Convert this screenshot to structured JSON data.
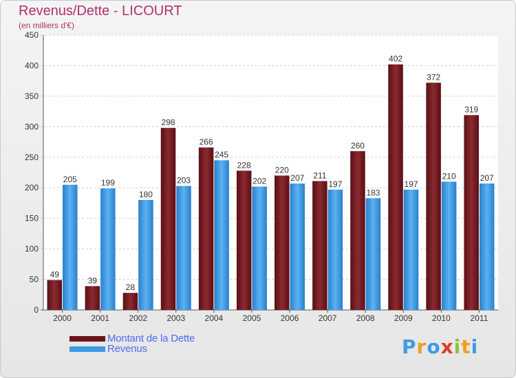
{
  "header": {
    "title": "Revenus/Dette - LICOURT",
    "subtitle": "(en milliers d'€)"
  },
  "colors": {
    "dette": "#7a1c24",
    "revenus": "#3e9ae6",
    "title": "#b0306a",
    "legend_text": "#4a6cf0"
  },
  "legend": {
    "dette_label": "Montant de la Dette",
    "revenus_label": "Revenus"
  },
  "logo": {
    "letters": [
      "P",
      "r",
      "o",
      "x",
      "i",
      "t",
      "i"
    ],
    "letter_colors": [
      "#3e9ae6",
      "#f0a020",
      "#3e9ae6",
      "#e03a2a",
      "#8cc43c",
      "#f0a020",
      "#3e9ae6"
    ]
  },
  "chart_data": {
    "type": "bar",
    "title": "Revenus/Dette - LICOURT",
    "subtitle": "(en milliers d'€)",
    "categories": [
      "2000",
      "2001",
      "2002",
      "2003",
      "2004",
      "2005",
      "2006",
      "2007",
      "2008",
      "2009",
      "2010",
      "2011"
    ],
    "series": [
      {
        "name": "Montant de la Dette",
        "values": [
          49,
          39,
          28,
          298,
          266,
          228,
          220,
          211,
          260,
          402,
          372,
          319
        ]
      },
      {
        "name": "Revenus",
        "values": [
          205,
          199,
          180,
          203,
          245,
          202,
          207,
          197,
          183,
          197,
          210,
          207
        ]
      }
    ],
    "ylim": [
      0,
      450
    ],
    "yticks": [
      0,
      50,
      100,
      150,
      200,
      250,
      300,
      350,
      400,
      450
    ],
    "grid": true,
    "legend_position": "bottom-left"
  }
}
